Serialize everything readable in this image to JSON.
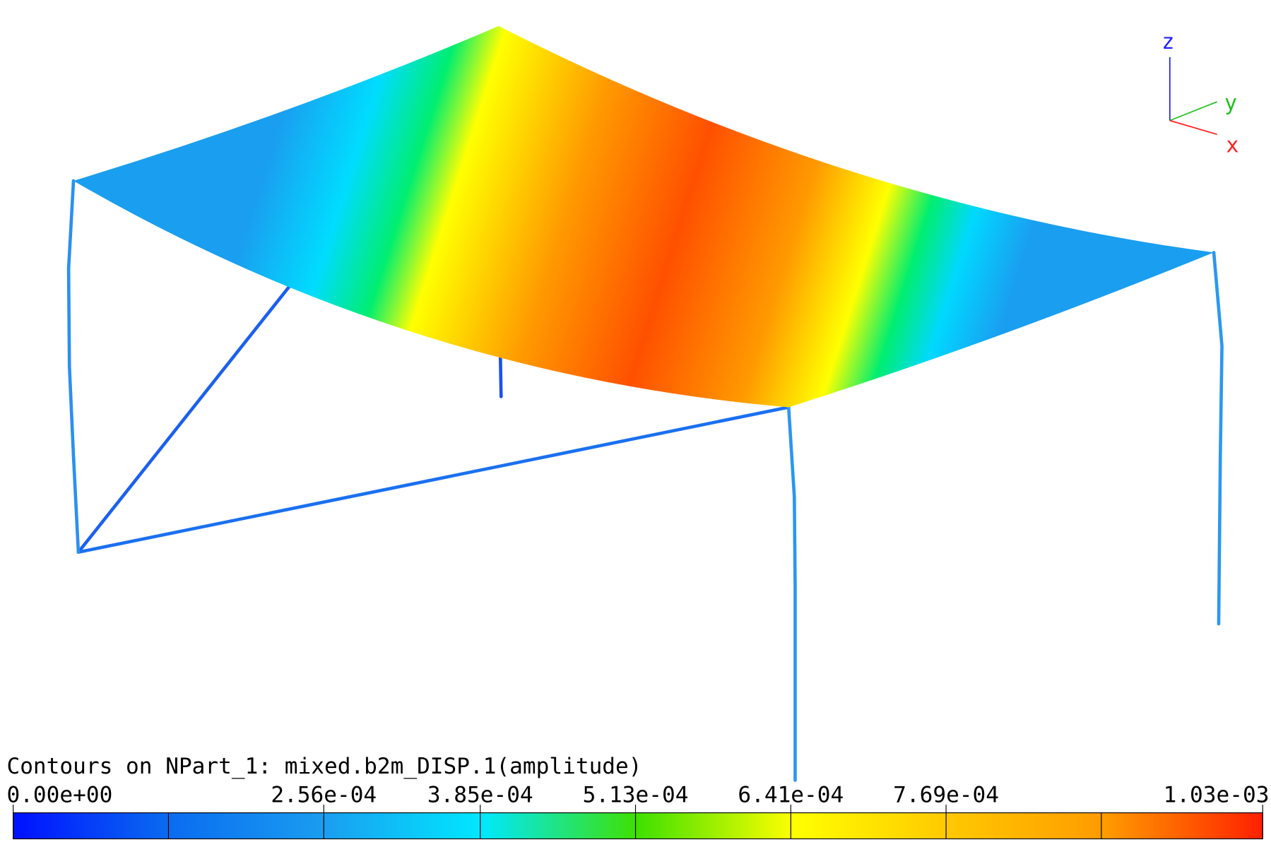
{
  "title": "Contours on NPart_1: mixed.b2m_DISP.1(amplitude)",
  "axes_triad": {
    "z": "z",
    "y": "y",
    "x": "x"
  },
  "colorbar": {
    "lim": [
      0,
      0.00103
    ],
    "ticks": [
      {
        "value": 0,
        "label": "0.00e+00"
      },
      {
        "value": 0.000256,
        "label": "2.56e-04"
      },
      {
        "value": 0.000385,
        "label": "3.85e-04"
      },
      {
        "value": 0.000513,
        "label": "5.13e-04"
      },
      {
        "value": 0.000641,
        "label": "6.41e-04"
      },
      {
        "value": 0.000769,
        "label": "7.69e-04"
      },
      {
        "value": 0.00103,
        "label": "1.03e-03"
      }
    ],
    "unlabeled_ticks": [
      0.000128,
      0.000897
    ],
    "colormap": [
      "#0010ff",
      "#0a6cf0",
      "#1a9ef0",
      "#00e8ff",
      "#40e000",
      "#ffff00",
      "#ffc800",
      "#ff9a00",
      "#ff2000"
    ]
  }
}
